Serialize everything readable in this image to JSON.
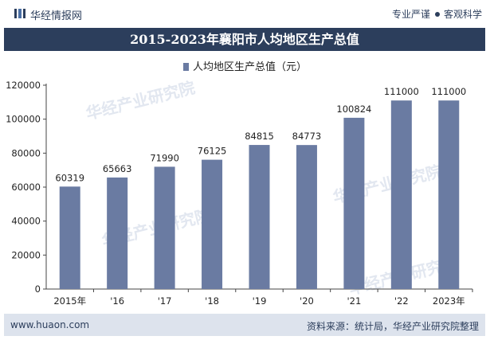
{
  "header": {
    "brand": "华经情报网",
    "tag_left": "专业严谨",
    "tag_right": "客观科学"
  },
  "title": "2015-2023年襄阳市人均地区生产总值",
  "legend_label": "人均地区生产总值（元）",
  "watermark": "华经产业研究院",
  "footer": {
    "left": "www.huaon.com",
    "right": "资料来源：统计局，华经产业研究院整理"
  },
  "colors": {
    "bar": "#6a7ba2",
    "header_bg": "#2c3e5c",
    "footer_bg": "#dde3ed"
  },
  "chart_data": {
    "type": "bar",
    "categories": [
      "2015年",
      "'16",
      "'17",
      "'18",
      "'19",
      "'20",
      "'21",
      "'22",
      "2023年"
    ],
    "series": [
      {
        "name": "人均地区生产总值（元）",
        "values": [
          60319,
          65663,
          71990,
          76125,
          84815,
          84773,
          100824,
          111000,
          111000
        ]
      }
    ],
    "ylim": [
      0,
      120000
    ],
    "yticks": [
      0,
      20000,
      40000,
      60000,
      80000,
      100000,
      120000
    ],
    "grid": false,
    "legend_position": "top-center",
    "data_labels": true
  }
}
